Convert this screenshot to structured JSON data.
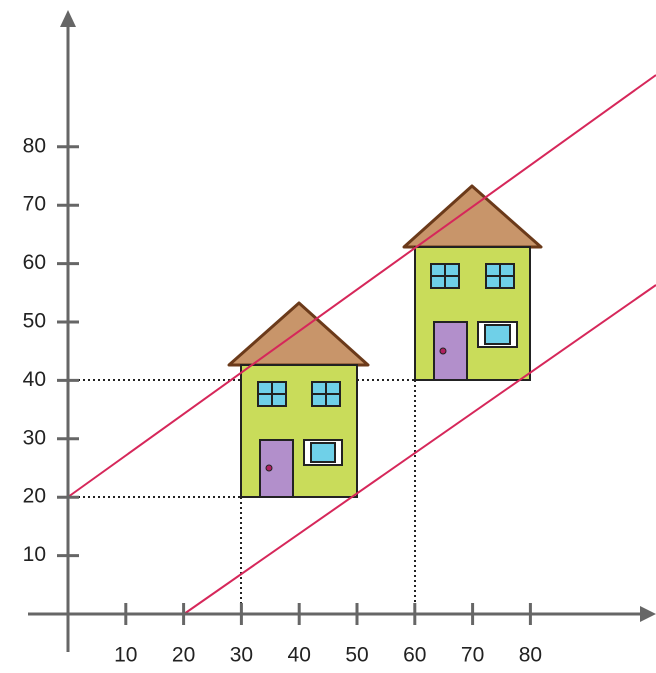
{
  "axes": {
    "xticks": [
      10,
      20,
      30,
      40,
      50,
      60,
      70,
      80
    ],
    "yticks": [
      10,
      20,
      30,
      40,
      50,
      60,
      70,
      80
    ]
  }
}
